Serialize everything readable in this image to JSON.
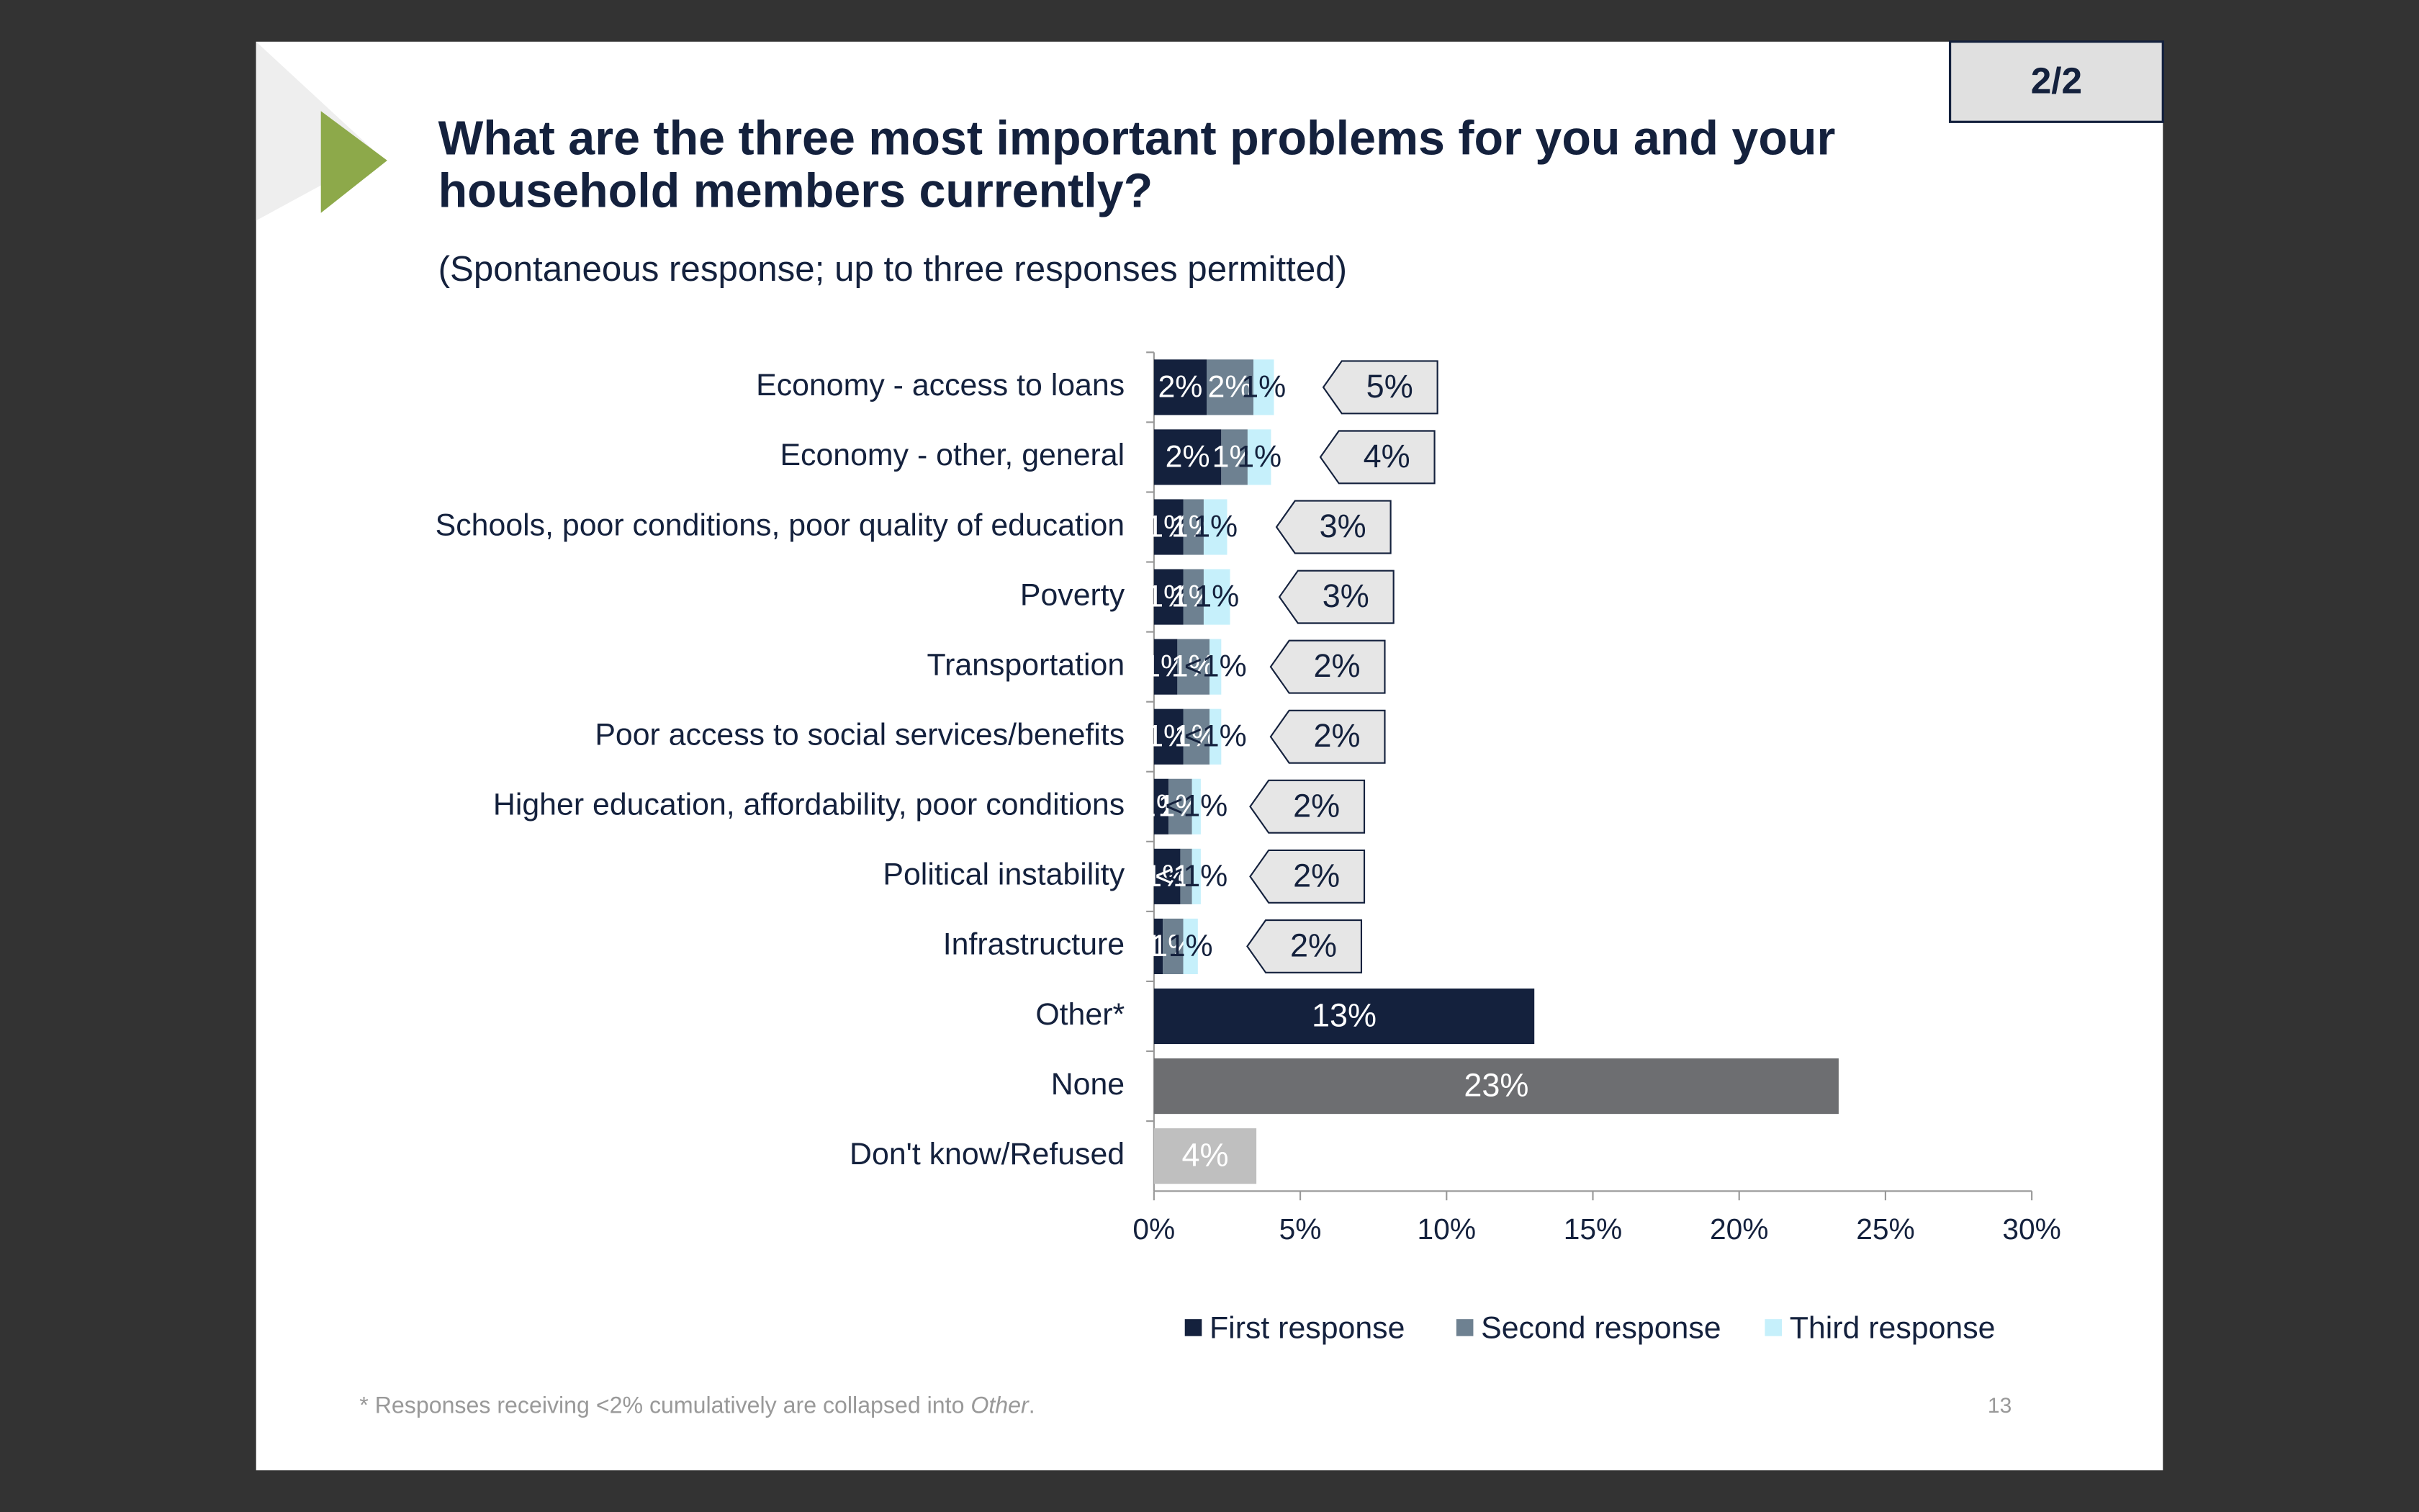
{
  "page_tag": "2/2",
  "page_number": "13",
  "footnote": [
    "* Responses receiving <2% cumulatively are collapsed into ",
    "Other",
    "."
  ],
  "chart_data": {
    "type": "stacked-bar-horizontal",
    "title_lines": [
      "What are the three most important problems for you and your",
      "household members currently?"
    ],
    "subtitle": "(Spontaneous response; up to three responses permitted)",
    "categories": [
      "Economy - access to loans",
      "Economy - other, general",
      "Schools, poor conditions, poor quality of education",
      "Poverty",
      "Transportation",
      "Poor access to social services/benefits",
      "Higher education, affordability, poor conditions",
      "Political instability",
      "Infrastructure",
      "Other*",
      "None",
      "Don't know/Refused"
    ],
    "series": [
      {
        "name": "First response",
        "color": "#14213d",
        "label_color": "#ffffff",
        "values": [
          1.8,
          2.3,
          1.0,
          1.0,
          0.8,
          1.0,
          0.5,
          0.9,
          0.3,
          null,
          null,
          null
        ],
        "value_labels": [
          "2%",
          "2%",
          "1%",
          "1%",
          "1%",
          "1%",
          "1%",
          "1%",
          "<1%",
          null,
          null,
          null
        ]
      },
      {
        "name": "Second response",
        "color": "#6e8191",
        "label_color": "#ffffff",
        "values": [
          1.6,
          0.9,
          0.7,
          0.7,
          1.1,
          0.9,
          0.8,
          0.4,
          0.7,
          null,
          null,
          null
        ],
        "value_labels": [
          "2%",
          "1%",
          "1%",
          "1%",
          "1%",
          "1%",
          "1%",
          "<1%",
          "1%",
          null,
          null,
          null
        ]
      },
      {
        "name": "Third response",
        "color": "#c6f0fb",
        "label_color": "#14213d",
        "values": [
          0.7,
          0.8,
          0.8,
          0.9,
          0.4,
          0.4,
          0.3,
          0.3,
          0.5,
          null,
          null,
          null
        ],
        "value_labels": [
          "1%",
          "1%",
          "1%",
          "1%",
          "<1%",
          "<1%",
          "<1%",
          "<1%",
          "1%",
          null,
          null,
          null
        ]
      }
    ],
    "totals": {
      "values": [
        5,
        4,
        3,
        3,
        2,
        2,
        2,
        2,
        2,
        null,
        null,
        null
      ],
      "value_labels": [
        "5%",
        "4%",
        "3%",
        "3%",
        "2%",
        "2%",
        "2%",
        "2%",
        "2%",
        null,
        null,
        null
      ]
    },
    "single": {
      "values": [
        null,
        null,
        null,
        null,
        null,
        null,
        null,
        null,
        null,
        13,
        23.4,
        3.5
      ],
      "value_labels": [
        null,
        null,
        null,
        null,
        null,
        null,
        null,
        null,
        null,
        "13%",
        "23%",
        "4%"
      ],
      "colors": [
        null,
        null,
        null,
        null,
        null,
        null,
        null,
        null,
        null,
        "#14213d",
        "#6d6e71",
        "#bfbfbf"
      ]
    },
    "xlim": [
      0,
      30
    ],
    "xticks": [
      {
        "value": 0,
        "label": "0%"
      },
      {
        "value": 5,
        "label": "5%"
      },
      {
        "value": 10,
        "label": "10%"
      },
      {
        "value": 15,
        "label": "15%"
      },
      {
        "value": 20,
        "label": "20%"
      },
      {
        "value": 25,
        "label": "25%"
      },
      {
        "value": 30,
        "label": "30%"
      }
    ],
    "legend": "bottom"
  }
}
